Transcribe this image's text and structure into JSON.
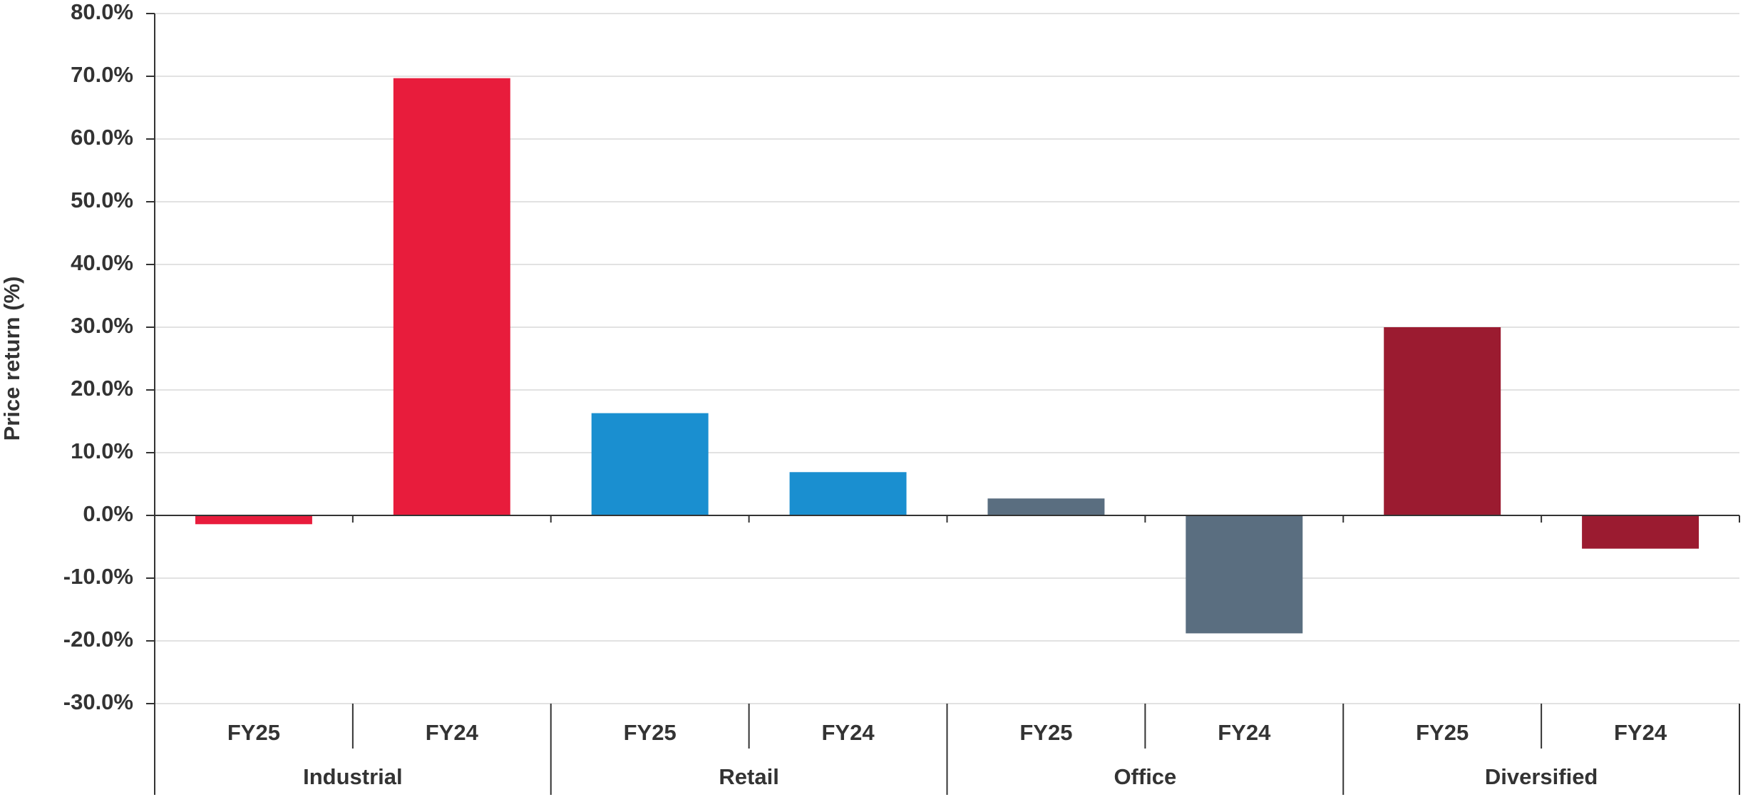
{
  "chart_data": {
    "type": "bar",
    "y_label": "Price return (%)",
    "categories": [
      "FY25",
      "FY24",
      "FY25",
      "FY24",
      "FY25",
      "FY24",
      "FY25",
      "FY24"
    ],
    "values": [
      -1.4,
      69.7,
      16.3,
      6.9,
      2.7,
      -18.8,
      30.0,
      -5.3
    ],
    "groups": [
      {
        "name": "Industrial",
        "color": "#e81c3c"
      },
      {
        "name": "Retail",
        "color": "#1a8fd0"
      },
      {
        "name": "Office",
        "color": "#5a6e80"
      },
      {
        "name": "Diversified",
        "color": "#9b1b30"
      }
    ],
    "ylim": [
      -30,
      80
    ],
    "yticks": [
      {
        "value": -30,
        "label": "-30.0%"
      },
      {
        "value": -20,
        "label": "-20.0%"
      },
      {
        "value": -10,
        "label": "-10.0%"
      },
      {
        "value": 0,
        "label": "0.0%"
      },
      {
        "value": 10,
        "label": "10.0%"
      },
      {
        "value": 20,
        "label": "20.0%"
      },
      {
        "value": 30,
        "label": "30.0%"
      },
      {
        "value": 40,
        "label": "40.0%"
      },
      {
        "value": 50,
        "label": "50.0%"
      },
      {
        "value": 60,
        "label": "60.0%"
      },
      {
        "value": 70,
        "label": "70.0%"
      },
      {
        "value": 80,
        "label": "80.0%"
      }
    ],
    "grid": true
  }
}
